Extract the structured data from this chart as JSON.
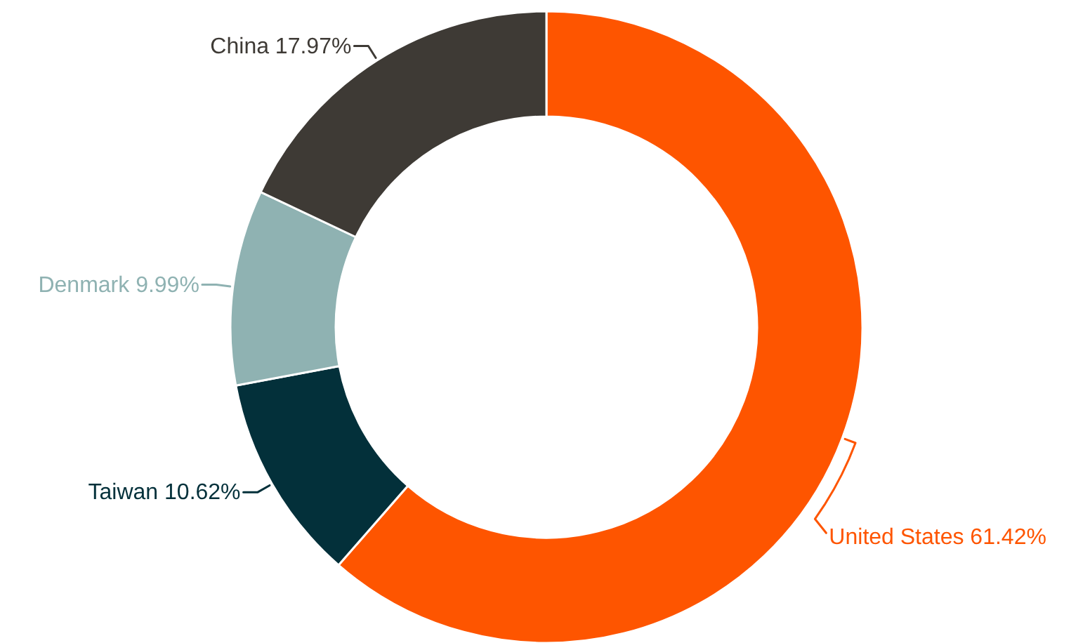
{
  "chart_data": {
    "type": "donut",
    "categories": [
      "United States",
      "Taiwan",
      "Denmark",
      "China"
    ],
    "values": [
      61.42,
      10.62,
      9.99,
      17.97
    ],
    "colors": [
      "#fe5500",
      "#03303a",
      "#8fb2b2",
      "#3e3a35"
    ],
    "value_labels": [
      "61.42%",
      "10.62%",
      "9.99%",
      "17.97%"
    ]
  }
}
